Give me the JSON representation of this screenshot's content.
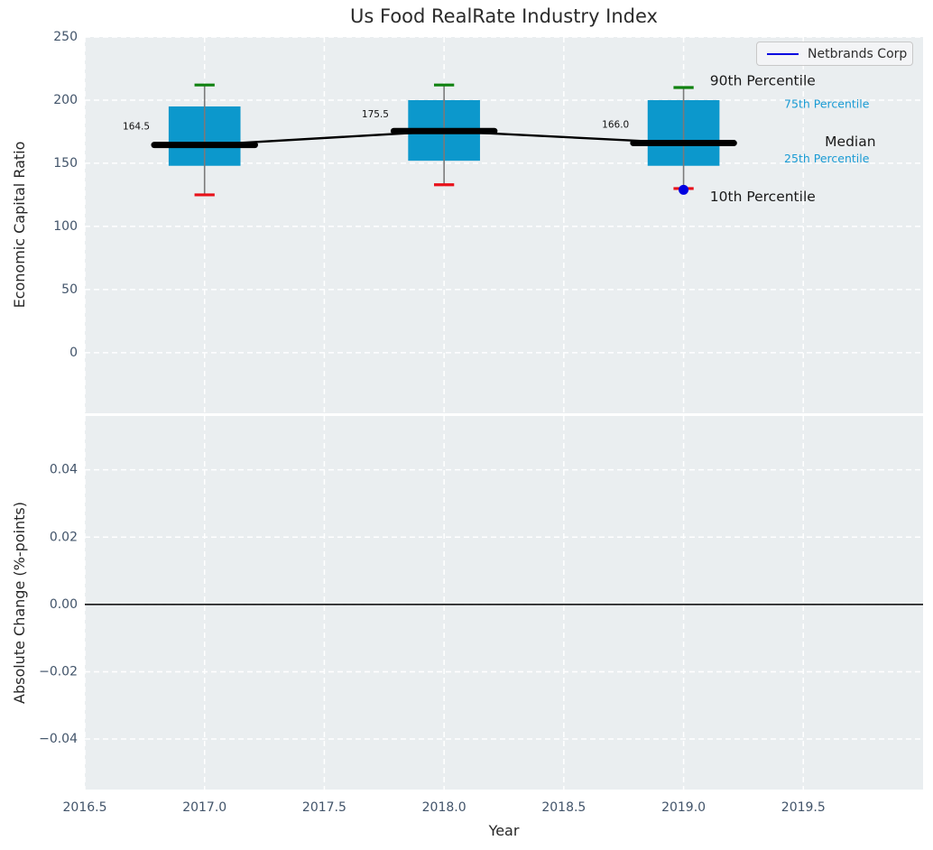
{
  "title": "Us Food RealRate Industry Index",
  "colors": {
    "figure_bg": "#ffffff",
    "plot_bg": "#eaeef0",
    "grid": "#ffffff",
    "box_fill": "#0c98cc",
    "median": "#000000",
    "p90_cap": "#108210",
    "p10_cap": "#e8111a",
    "whisker": "#7a7a7a",
    "company_point": "#0000e0",
    "annotation_blue": "#1a9bd4",
    "annotation_dark": "#1a1a1a",
    "tick_label": "#42546a",
    "value_label": "#111111",
    "zero_line": "#000000"
  },
  "chart_data": [
    {
      "type": "boxplot-timeseries",
      "title": "Us Food RealRate Industry Index",
      "ylabel": "Economic Capital Ratio",
      "xlabel": "Year",
      "xlim": [
        2016.5,
        2020.0
      ],
      "ylim": [
        -48,
        250
      ],
      "xticks": [
        {
          "v": 2016.5,
          "label": "2016.5"
        },
        {
          "v": 2017.0,
          "label": "2017.0"
        },
        {
          "v": 2017.5,
          "label": "2017.5"
        },
        {
          "v": 2018.0,
          "label": "2018.0"
        },
        {
          "v": 2018.5,
          "label": "2018.5"
        },
        {
          "v": 2019.0,
          "label": "2019.0"
        },
        {
          "v": 2019.5,
          "label": "2019.5"
        }
      ],
      "yticks": [
        {
          "v": 250,
          "label": "250"
        },
        {
          "v": 200,
          "label": "200"
        },
        {
          "v": 150,
          "label": "150"
        },
        {
          "v": 100,
          "label": "100"
        },
        {
          "v": 50,
          "label": "50"
        },
        {
          "v": 0,
          "label": "0"
        }
      ],
      "boxes": [
        {
          "year": 2017,
          "p10": 125,
          "p25": 148,
          "median": 164.5,
          "p75": 195,
          "p90": 212,
          "label": "164.5"
        },
        {
          "year": 2018,
          "p10": 133,
          "p25": 152,
          "median": 175.5,
          "p75": 200,
          "p90": 212,
          "label": "175.5"
        },
        {
          "year": 2019,
          "p10": 130,
          "p25": 148,
          "median": 166.0,
          "p75": 200,
          "p90": 210,
          "label": "166.0"
        }
      ],
      "median_line": [
        [
          2017,
          164.5
        ],
        [
          2018,
          175.5
        ],
        [
          2019,
          166.0
        ]
      ],
      "company_series": {
        "name": "Netbrands Corp",
        "points": [
          [
            2019,
            129
          ]
        ]
      },
      "value_labels": [
        {
          "text": "164.5",
          "x": 2016.715,
          "y": 179.0
        },
        {
          "text": "175.5",
          "x": 2017.713,
          "y": 188.5
        },
        {
          "text": "166.0",
          "x": 2018.716,
          "y": 180.5
        }
      ],
      "annotations": [
        {
          "text": "90th Percentile",
          "x": 2019.11,
          "y": 215.5,
          "size": "large",
          "color": "dark"
        },
        {
          "text": "75th Percentile",
          "x": 2019.42,
          "y": 197.0,
          "size": "small",
          "color": "blue"
        },
        {
          "text": "Median",
          "x": 2019.59,
          "y": 167.0,
          "size": "large",
          "color": "dark"
        },
        {
          "text": "25th Percentile",
          "x": 2019.42,
          "y": 154.0,
          "size": "small",
          "color": "blue"
        },
        {
          "text": "10th Percentile",
          "x": 2019.11,
          "y": 123.5,
          "size": "large",
          "color": "dark"
        }
      ]
    },
    {
      "type": "line",
      "ylabel": "Absolute Change (%-points)",
      "xlabel": "Year",
      "ylim": [
        -0.055,
        0.056
      ],
      "yticks": [
        {
          "v": 0.04,
          "label": "0.04"
        },
        {
          "v": 0.02,
          "label": "0.02"
        },
        {
          "v": 0.0,
          "label": "0.00"
        },
        {
          "v": -0.02,
          "label": "−0.02"
        },
        {
          "v": -0.04,
          "label": "−0.04"
        }
      ],
      "zero_line": 0.0,
      "series": []
    }
  ]
}
